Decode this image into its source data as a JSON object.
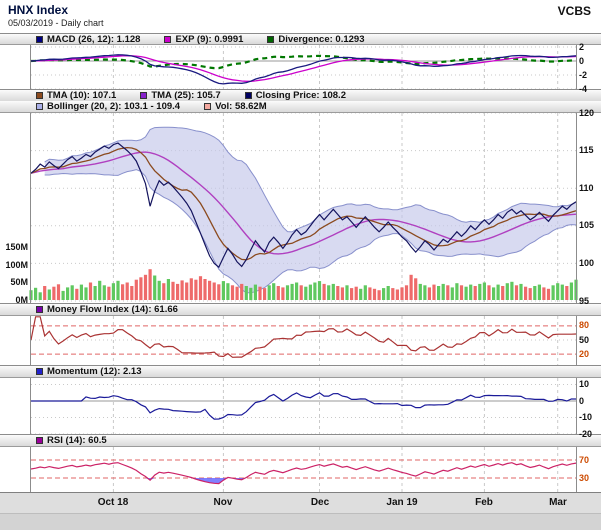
{
  "header": {
    "title": "HNX Index",
    "subtitle": "05/03/2019 - Daily chart",
    "brand": "VCBS"
  },
  "legends": {
    "macd": [
      {
        "label": "MACD (26, 12): 1.128",
        "color": "#000080"
      },
      {
        "label": "EXP (9): 0.9991",
        "color": "#cc00cc"
      },
      {
        "label": "Divergence: 0.1293",
        "color": "#006600"
      }
    ],
    "price_row1": [
      {
        "label": "TMA (10): 107.1",
        "color": "#8b4a1e"
      },
      {
        "label": "TMA (25): 105.7",
        "color": "#8822cc"
      },
      {
        "label": "Closing Price: 108.2",
        "color": "#000060"
      }
    ],
    "price_row2": [
      {
        "label": "Bollinger (20, 2): 103.1 - 109.4",
        "color": "#aab0e8"
      },
      {
        "label": "Vol: 58.62M",
        "color": "#f4a9a0"
      }
    ],
    "mfi": [
      {
        "label": "Money Flow Index (14): 61.66",
        "color": "#7700aa"
      }
    ],
    "momentum": [
      {
        "label": "Momentum (12): 2.13",
        "color": "#2222cc"
      }
    ],
    "rsi": [
      {
        "label": "RSI (14): 60.5",
        "color": "#990099"
      }
    ]
  },
  "axes": {
    "macd": [
      {
        "label": "2",
        "v": 2
      },
      {
        "label": "0",
        "v": 0
      },
      {
        "label": "-2",
        "v": -2
      },
      {
        "label": "-4",
        "v": -4
      }
    ],
    "price": [
      {
        "label": "120",
        "v": 120
      },
      {
        "label": "115",
        "v": 115
      },
      {
        "label": "110",
        "v": 110
      },
      {
        "label": "105",
        "v": 105
      },
      {
        "label": "100",
        "v": 100
      },
      {
        "label": "95",
        "v": 95
      }
    ],
    "volume": [
      {
        "label": "150M",
        "v": 150
      },
      {
        "label": "100M",
        "v": 100
      },
      {
        "label": "50M",
        "v": 50
      },
      {
        "label": "0M",
        "v": 0
      }
    ],
    "mfi": [
      {
        "label": "80",
        "v": 80,
        "warn": true
      },
      {
        "label": "50",
        "v": 50
      },
      {
        "label": "20",
        "v": 20,
        "warn": true
      }
    ],
    "momentum": [
      {
        "label": "10",
        "v": 10
      },
      {
        "label": "0",
        "v": 0
      },
      {
        "label": "-10",
        "v": -10
      },
      {
        "label": "-20",
        "v": -20
      }
    ],
    "rsi": [
      {
        "label": "70",
        "v": 70,
        "warn": true
      },
      {
        "label": "30",
        "v": 30,
        "warn": true
      }
    ]
  },
  "xaxis": {
    "ticks": [
      {
        "label": "Oct 18",
        "index": 18
      },
      {
        "label": "Nov",
        "index": 42
      },
      {
        "label": "Dec",
        "index": 63
      },
      {
        "label": "Jan 19",
        "index": 81
      },
      {
        "label": "Feb",
        "index": 99
      },
      {
        "label": "Mar",
        "index": 115
      }
    ]
  },
  "colors": {
    "macd": "#1a1a80",
    "signal": "#cc00cc",
    "divergence": "#007700",
    "tma10": "#8b4a1e",
    "tma25": "#b040c0",
    "close": "#14145e",
    "bollinger_fill": "#c3c6ea",
    "bollinger_edge": "#8890cc",
    "vol_up": "#5fc85f",
    "vol_down": "#ee6a6a",
    "mfi": "#aa3333",
    "momentum": "#1a1a99",
    "rsi": "#cc2266",
    "rsi_above_fill": "#ff6060",
    "rsi_below_fill": "#6060ff",
    "threshold": "#e06666",
    "grid": "#c9c9c9"
  },
  "chart_data": {
    "type": "line",
    "title": "HNX Index - Daily chart (05/03/2019)",
    "panels": [
      "MACD",
      "Price with TMA/Bollinger/Volume",
      "Money Flow Index",
      "Momentum",
      "RSI"
    ],
    "price_axis_range": [
      95,
      120
    ],
    "macd_axis_range": [
      -4,
      2
    ],
    "momentum_axis_range": [
      -20,
      10
    ],
    "mfi_gridlines": [
      20,
      50,
      80
    ],
    "rsi_thresholds": [
      30,
      70
    ],
    "volume_axis_range_m": [
      0,
      150
    ],
    "indicator_values": {
      "macd": 1.128,
      "macd_signal": 0.9991,
      "macd_divergence": 0.1293,
      "tma10": 107.1,
      "tma25": 105.7,
      "close": 108.2,
      "bollinger_lower": 103.1,
      "bollinger_upper": 109.4,
      "volume": "58.62M",
      "mfi": 61.66,
      "momentum": 2.13,
      "rsi": 60.5
    },
    "close": [
      112.0,
      112.5,
      113.2,
      112.8,
      113.5,
      113.0,
      112.6,
      113.2,
      113.8,
      114.2,
      113.6,
      114.0,
      114.5,
      114.2,
      114.8,
      115.2,
      115.6,
      115.3,
      115.8,
      116.0,
      115.5,
      115.0,
      114.4,
      113.6,
      112.2,
      110.6,
      107.6,
      109.6,
      111.0,
      110.4,
      110.8,
      110.2,
      109.5,
      108.8,
      108.0,
      107.0,
      105.5,
      104.0,
      102.5,
      101.0,
      100.0,
      99.5,
      100.8,
      102.0,
      101.2,
      100.2,
      99.6,
      100.5,
      101.8,
      103.0,
      102.2,
      101.5,
      102.8,
      103.5,
      102.8,
      102.0,
      102.8,
      103.8,
      104.5,
      103.8,
      104.2,
      105.0,
      105.8,
      106.5,
      105.8,
      106.5,
      107.2,
      106.5,
      105.8,
      106.2,
      105.5,
      104.8,
      105.5,
      106.2,
      105.5,
      104.8,
      104.2,
      104.8,
      105.5,
      104.8,
      104.2,
      103.5,
      103.0,
      102.2,
      101.5,
      102.2,
      103.0,
      102.5,
      101.8,
      102.5,
      103.2,
      102.8,
      103.5,
      104.2,
      103.6,
      104.2,
      105.0,
      104.5,
      105.2,
      105.8,
      105.2,
      105.8,
      106.5,
      106.0,
      106.8,
      107.2,
      106.6,
      107.0,
      106.4,
      105.8,
      106.2,
      106.8,
      106.2,
      105.6,
      106.4,
      107.0,
      107.6,
      107.2,
      107.8,
      108.2
    ],
    "volume_m": [
      28,
      35,
      22,
      40,
      30,
      38,
      45,
      26,
      36,
      42,
      32,
      44,
      36,
      50,
      40,
      55,
      42,
      38,
      48,
      55,
      45,
      50,
      40,
      58,
      65,
      72,
      88,
      70,
      55,
      48,
      60,
      52,
      46,
      56,
      50,
      62,
      58,
      68,
      60,
      55,
      50,
      45,
      54,
      48,
      42,
      38,
      46,
      40,
      35,
      44,
      38,
      34,
      42,
      48,
      40,
      36,
      42,
      46,
      50,
      42,
      38,
      44,
      50,
      54,
      46,
      42,
      46,
      40,
      36,
      42,
      34,
      38,
      32,
      42,
      36,
      32,
      28,
      34,
      40,
      34,
      30,
      36,
      42,
      72,
      62,
      46,
      42,
      36,
      44,
      40,
      46,
      42,
      36,
      48,
      42,
      38,
      44,
      40,
      46,
      50,
      42,
      36,
      44,
      40,
      48,
      52,
      42,
      46,
      38,
      34,
      40,
      44,
      36,
      32,
      42,
      48,
      44,
      40,
      50,
      58
    ]
  }
}
